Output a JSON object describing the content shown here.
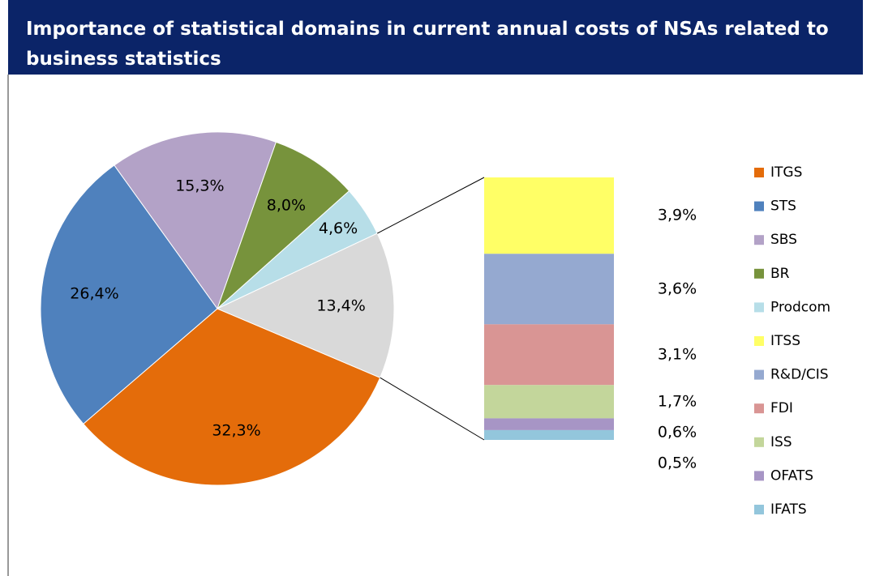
{
  "chart_data": {
    "type": "pie",
    "title": "Importance of statistical domains in current annual costs of NSAs related to business statistics",
    "categories": [
      "ITGS",
      "STS",
      "SBS",
      "BR",
      "Prodcom",
      null
    ],
    "values": [
      32.3,
      26.4,
      15.3,
      8.0,
      4.6,
      13.4
    ],
    "value_labels": [
      "32,3%",
      "26,4%",
      "15,3%",
      "8,0%",
      "4,6%",
      "13,4%"
    ],
    "colors": [
      "#e46c0a",
      "#4f81bd",
      "#b3a2c7",
      "#77933c",
      "#b7dee8",
      "#d9d9d9"
    ],
    "breakdown": {
      "categories": [
        "ITSS",
        "R&D/CIS",
        "FDI",
        "ISS",
        "OFATS",
        "IFATS"
      ],
      "values": [
        3.9,
        3.6,
        3.1,
        1.7,
        0.6,
        0.5
      ],
      "value_labels": [
        "3,9%",
        "3,6%",
        "3,1%",
        "1,7%",
        "0,6%",
        "0,5%"
      ],
      "colors": [
        "#ffff66",
        "#95a9d0",
        "#d99594",
        "#c3d69b",
        "#a795c5",
        "#93c6dc"
      ]
    },
    "legend": "right"
  }
}
